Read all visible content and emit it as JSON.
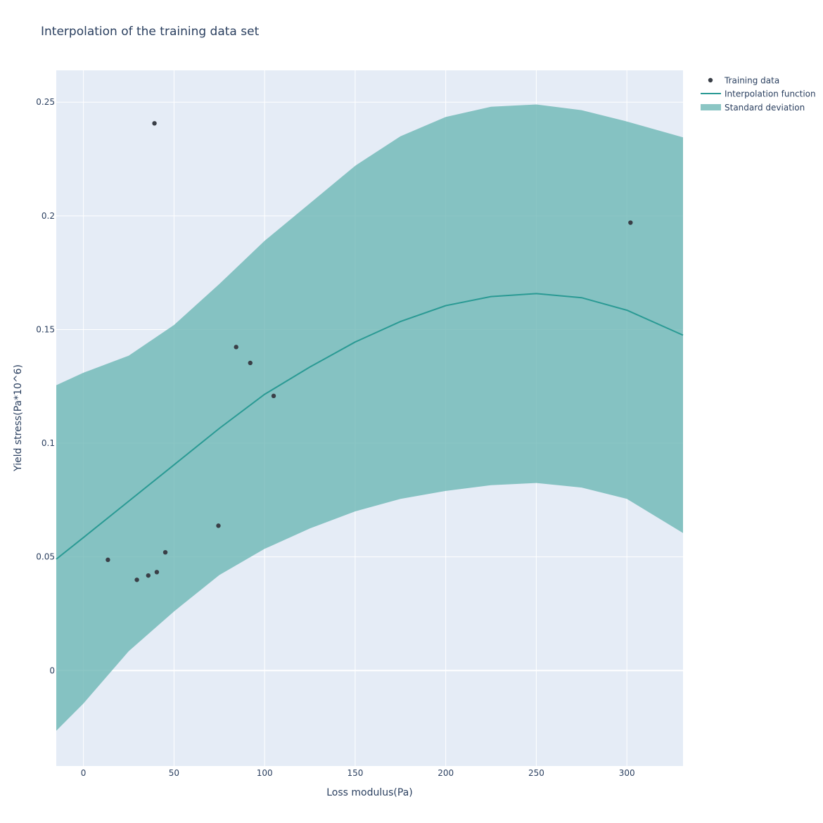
{
  "chart_data": {
    "type": "scatter",
    "title": "Interpolation of the training data set",
    "xlabel": "Loss modulus(Pa)",
    "ylabel": "Yield stress(Pa*10^6)",
    "xlim": [
      -15,
      331
    ],
    "ylim": [
      -0.042,
      0.264
    ],
    "x_ticks": [
      0,
      50,
      100,
      150,
      200,
      250,
      300
    ],
    "y_ticks": [
      0,
      0.05,
      0.1,
      0.15,
      0.2,
      0.25
    ],
    "x_tick_labels": [
      "0",
      "50",
      "100",
      "150",
      "200",
      "250",
      "300"
    ],
    "y_tick_labels": [
      "0",
      "0.05",
      "0.1",
      "0.15",
      "0.2",
      "0.25"
    ],
    "grid": true,
    "legend_position": "top-right",
    "colors": {
      "plot_bg": "#e5ecf6",
      "grid": "#ffffff",
      "training_points": "#3a3f47",
      "interpolation_line": "#2a9a94",
      "std_band": "#6ab6b4"
    },
    "series": [
      {
        "name": "Training data",
        "kind": "markers",
        "x": [
          13.5,
          29.5,
          35.8,
          40.5,
          39.2,
          45.2,
          74.5,
          84.3,
          92.1,
          105.0,
          302.0
        ],
        "y": [
          0.0487,
          0.0399,
          0.0418,
          0.0433,
          0.2407,
          0.052,
          0.0637,
          0.1423,
          0.1353,
          0.1208,
          0.197
        ]
      },
      {
        "name": "Interpolation function",
        "kind": "line",
        "x": [
          -15,
          0,
          25,
          50,
          75,
          100,
          125,
          150,
          175,
          200,
          225,
          250,
          275,
          300,
          331
        ],
        "y": [
          0.049,
          0.0585,
          0.0745,
          0.0905,
          0.1065,
          0.1215,
          0.1335,
          0.1445,
          0.1535,
          0.1605,
          0.1645,
          0.1658,
          0.164,
          0.1585,
          0.1475
        ]
      },
      {
        "name": "Standard deviation",
        "kind": "band",
        "x": [
          -15,
          0,
          25,
          50,
          75,
          100,
          125,
          150,
          175,
          200,
          225,
          250,
          275,
          300,
          331
        ],
        "upper": [
          0.1255,
          0.131,
          0.1385,
          0.152,
          0.17,
          0.189,
          0.2055,
          0.222,
          0.235,
          0.2435,
          0.248,
          0.249,
          0.2465,
          0.2415,
          0.2345
        ],
        "lower": [
          -0.0265,
          -0.0145,
          0.0085,
          0.026,
          0.042,
          0.0535,
          0.0625,
          0.07,
          0.0755,
          0.079,
          0.0815,
          0.0825,
          0.0805,
          0.0755,
          0.0605
        ]
      }
    ]
  }
}
